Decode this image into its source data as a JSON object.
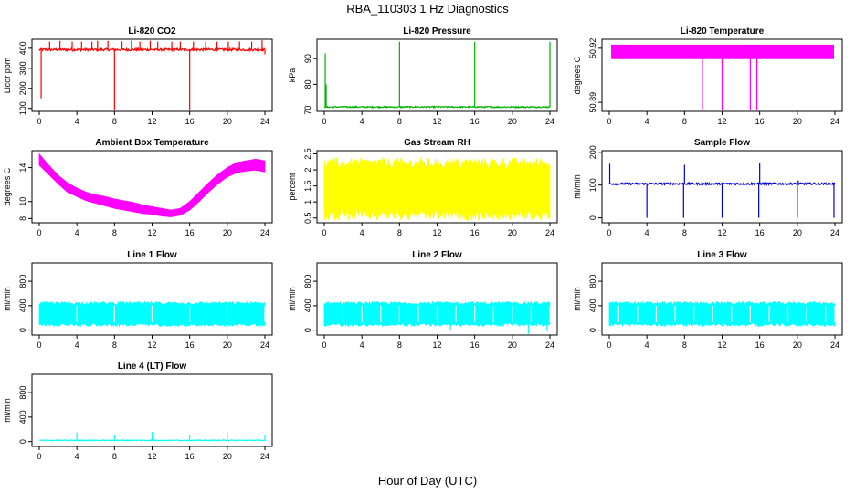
{
  "figure": {
    "title": "RBA_110303  1 Hz Diagnostics",
    "xlabel": "Hour of Day (UTC)"
  },
  "chart_data": [
    {
      "type": "line",
      "title": "Li-820 CO2",
      "ylabel": "Licor ppm",
      "color": "#ff0000",
      "xlim": [
        0,
        24
      ],
      "ylim": [
        85,
        445
      ],
      "xticks": [
        "0",
        "4",
        "8",
        "12",
        "16",
        "20",
        "24"
      ],
      "yticks": [
        100,
        200,
        300,
        400
      ],
      "baseline": 393,
      "noise": 6,
      "spikes": [
        [
          0.2,
          150
        ],
        [
          1.1,
          433
        ],
        [
          2.2,
          437
        ],
        [
          3.5,
          433
        ],
        [
          4.5,
          433
        ],
        [
          5.6,
          433
        ],
        [
          6.2,
          437
        ],
        [
          7.3,
          437
        ],
        [
          8.0,
          92
        ],
        [
          8.8,
          434
        ],
        [
          9.8,
          437
        ],
        [
          10.7,
          433
        ],
        [
          11.8,
          437
        ],
        [
          12.6,
          433
        ],
        [
          14.1,
          433
        ],
        [
          15.0,
          433
        ],
        [
          16.0,
          90
        ],
        [
          16.4,
          433
        ],
        [
          17.7,
          433
        ],
        [
          18.9,
          433
        ],
        [
          20.1,
          433
        ],
        [
          21.3,
          434
        ],
        [
          22.6,
          433
        ],
        [
          23.7,
          440
        ],
        [
          24.0,
          370
        ]
      ]
    },
    {
      "type": "line",
      "title": "Li-820 Pressure",
      "ylabel": "kPa",
      "color": "#00b000",
      "xlim": [
        0,
        24
      ],
      "ylim": [
        69.5,
        97.5
      ],
      "xticks": [
        "0",
        "4",
        "8",
        "12",
        "16",
        "20",
        "24"
      ],
      "yticks": [
        70,
        80,
        90
      ],
      "baseline": 71.2,
      "noise": 0.25,
      "spikes": [
        [
          0.1,
          92
        ],
        [
          0.2,
          80
        ],
        [
          8.0,
          96.5
        ],
        [
          16.0,
          96.5
        ],
        [
          24.0,
          96.5
        ]
      ]
    },
    {
      "type": "bars",
      "title": "Li-820 Temperature",
      "ylabel": "degrees C",
      "color": "#ff00ff",
      "xlim": [
        0,
        24
      ],
      "ylim": [
        50.885,
        50.925
      ],
      "xticks": [
        "0",
        "4",
        "8",
        "12",
        "16",
        "20",
        "24"
      ],
      "yticks": [
        50.89,
        50.92
      ],
      "band": [
        50.914,
        50.922
      ],
      "drops": [
        [
          0.6,
          50.914
        ],
        [
          1.2,
          50.914
        ],
        [
          1.9,
          50.914
        ],
        [
          9.9,
          50.885
        ],
        [
          12.0,
          50.885
        ],
        [
          15.0,
          50.885
        ],
        [
          15.7,
          50.885
        ]
      ]
    },
    {
      "type": "band",
      "title": "Ambient Box Temperature",
      "ylabel": "degrees C",
      "color": "#ff00ff",
      "xlim": [
        0,
        24
      ],
      "ylim": [
        7.5,
        16
      ],
      "xticks": [
        "0",
        "4",
        "8",
        "12",
        "16",
        "20",
        "24"
      ],
      "yticks": [
        8,
        10,
        14
      ],
      "x": [
        0,
        1,
        2,
        3,
        4,
        5,
        6,
        7,
        8,
        9,
        10,
        11,
        12,
        13,
        14,
        15,
        16,
        17,
        18,
        19,
        20,
        21,
        22,
        23,
        24
      ],
      "upper": [
        15.6,
        14.3,
        13.1,
        12.2,
        11.6,
        11.1,
        10.8,
        10.6,
        10.3,
        10.1,
        9.9,
        9.6,
        9.4,
        9.2,
        9.0,
        9.2,
        10.0,
        11.1,
        12.2,
        13.2,
        14.0,
        14.6,
        14.8,
        15.0,
        14.8
      ],
      "lower": [
        14.3,
        13.2,
        12.1,
        11.1,
        10.6,
        10.1,
        9.8,
        9.5,
        9.2,
        9.0,
        8.8,
        8.6,
        8.5,
        8.3,
        8.2,
        8.4,
        9.0,
        10.0,
        11.1,
        12.1,
        12.9,
        13.4,
        13.6,
        13.7,
        13.5
      ]
    },
    {
      "type": "band",
      "title": "Gas Stream RH",
      "ylabel": "percent",
      "color": "#ffff00",
      "xlim": [
        0,
        24
      ],
      "ylim": [
        0.35,
        2.6
      ],
      "xticks": [
        "0",
        "4",
        "8",
        "12",
        "16",
        "20",
        "24"
      ],
      "yticks": [
        0.5,
        1.0,
        1.5,
        2.0,
        2.5
      ],
      "x": [
        0,
        24
      ],
      "upper": [
        2.2,
        2.2
      ],
      "lower": [
        0.6,
        0.6
      ],
      "jitter": 0.18
    },
    {
      "type": "line",
      "title": "Sample Flow",
      "ylabel": "ml/min",
      "color": "#0000dd",
      "xlim": [
        0,
        24
      ],
      "ylim": [
        -15,
        205
      ],
      "xticks": [
        "0",
        "4",
        "8",
        "12",
        "16",
        "20",
        "24"
      ],
      "yticks": [
        0,
        100,
        200
      ],
      "baseline": 104,
      "noise": 3,
      "spikes": [
        [
          0.05,
          165
        ],
        [
          4.0,
          0
        ],
        [
          7.9,
          0
        ],
        [
          8.0,
          162
        ],
        [
          12.0,
          0
        ],
        [
          12.1,
          114
        ],
        [
          15.9,
          0
        ],
        [
          16.0,
          168
        ],
        [
          20.0,
          0
        ],
        [
          20.1,
          114
        ],
        [
          23.9,
          0
        ]
      ]
    },
    {
      "type": "band",
      "title": "Line 1 Flow",
      "ylabel": "ml/min",
      "color": "#00ffff",
      "xlim": [
        0,
        24
      ],
      "ylim": [
        -80,
        1100
      ],
      "xticks": [
        "0",
        "4",
        "8",
        "12",
        "16",
        "20",
        "24"
      ],
      "yticks": [
        0,
        400,
        800
      ],
      "x": [
        0,
        24
      ],
      "upper": [
        440,
        440
      ],
      "lower": [
        90,
        90
      ],
      "jitter": 25,
      "gaps": [
        4.0,
        8.0,
        12.0,
        16.0,
        20.0,
        24.0
      ]
    },
    {
      "type": "band",
      "title": "Line 2 Flow",
      "ylabel": "ml/min",
      "color": "#00ffff",
      "xlim": [
        0,
        24
      ],
      "ylim": [
        -80,
        1100
      ],
      "xticks": [
        "0",
        "4",
        "8",
        "12",
        "16",
        "20",
        "24"
      ],
      "yticks": [
        0,
        400,
        800
      ],
      "x": [
        0,
        24
      ],
      "upper": [
        440,
        440
      ],
      "lower": [
        90,
        90
      ],
      "jitter": 25,
      "gaps": [
        2.0,
        4.0,
        6.0,
        8.0,
        10.0,
        12.0,
        14.0,
        16.0,
        18.0,
        20.0,
        22.0,
        24.0
      ],
      "dips": [
        [
          13.4,
          -10
        ],
        [
          21.7,
          -60
        ],
        [
          23.7,
          -20
        ]
      ]
    },
    {
      "type": "band",
      "title": "Line 3 Flow",
      "ylabel": "ml/min",
      "color": "#00ffff",
      "xlim": [
        0,
        24
      ],
      "ylim": [
        -80,
        1100
      ],
      "xticks": [
        "0",
        "4",
        "8",
        "12",
        "16",
        "20",
        "24"
      ],
      "yticks": [
        0,
        400,
        800
      ],
      "x": [
        0,
        24
      ],
      "upper": [
        440,
        440
      ],
      "lower": [
        90,
        90
      ],
      "jitter": 25,
      "gaps": [
        1.0,
        3.0,
        5.0,
        7.0,
        9.0,
        11.0,
        13.0,
        15.0,
        17.0,
        19.0,
        21.0,
        23.0,
        24.0
      ]
    },
    {
      "type": "line",
      "title": "Line 4 (LT) Flow",
      "ylabel": "ml/min",
      "color": "#00ffff",
      "xlim": [
        0,
        24
      ],
      "ylim": [
        -80,
        1100
      ],
      "xticks": [
        "0",
        "4",
        "8",
        "12",
        "16",
        "20",
        "24"
      ],
      "yticks": [
        0,
        400,
        800
      ],
      "baseline": 20,
      "noise": 6,
      "spikes": [
        [
          4.0,
          150
        ],
        [
          8.0,
          110
        ],
        [
          12.0,
          155
        ],
        [
          16.0,
          100
        ],
        [
          20.0,
          150
        ],
        [
          24.0,
          110
        ]
      ]
    }
  ]
}
